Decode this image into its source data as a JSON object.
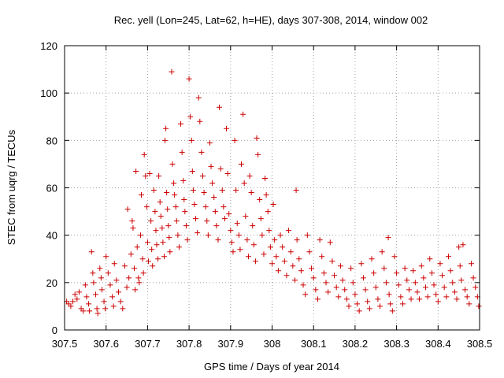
{
  "chart_data": {
    "type": "scatter",
    "title": "Rec. yell (Lon=245, Lat=62, h=HE), days 307-308, 2014, window 002",
    "xlabel": "GPS time / Days of year 2014",
    "ylabel": "STEC from uqrg / TECUs",
    "xlim": [
      307.5,
      308.5
    ],
    "ylim": [
      0,
      120
    ],
    "x_ticks": [
      "307.5",
      "307.6",
      "307.7",
      "307.8",
      "307.9",
      "308",
      "308.1",
      "308.2",
      "308.3",
      "308.4",
      "308.5"
    ],
    "y_ticks": [
      "0",
      "20",
      "40",
      "60",
      "80",
      "100",
      "120"
    ],
    "grid": true,
    "marker": "+",
    "marker_color": "#cc0000",
    "series": [
      {
        "name": "STEC",
        "points": [
          [
            307.505,
            12
          ],
          [
            307.51,
            11
          ],
          [
            307.515,
            10
          ],
          [
            307.52,
            12
          ],
          [
            307.525,
            15
          ],
          [
            307.53,
            13
          ],
          [
            307.535,
            16
          ],
          [
            307.54,
            9
          ],
          [
            307.545,
            8
          ],
          [
            307.55,
            19
          ],
          [
            307.553,
            14
          ],
          [
            307.558,
            11
          ],
          [
            307.56,
            8
          ],
          [
            307.565,
            33
          ],
          [
            307.568,
            24
          ],
          [
            307.57,
            20
          ],
          [
            307.575,
            15
          ],
          [
            307.578,
            9
          ],
          [
            307.58,
            7
          ],
          [
            307.585,
            26
          ],
          [
            307.588,
            22
          ],
          [
            307.59,
            17
          ],
          [
            307.595,
            12
          ],
          [
            307.598,
            9
          ],
          [
            307.6,
            31
          ],
          [
            307.605,
            24
          ],
          [
            307.61,
            19
          ],
          [
            307.615,
            14
          ],
          [
            307.618,
            10
          ],
          [
            307.62,
            28
          ],
          [
            307.625,
            21
          ],
          [
            307.63,
            16
          ],
          [
            307.635,
            12
          ],
          [
            307.64,
            9
          ],
          [
            307.645,
            27
          ],
          [
            307.65,
            18
          ],
          [
            307.652,
            51
          ],
          [
            307.655,
            22
          ],
          [
            307.66,
            32
          ],
          [
            307.663,
            46
          ],
          [
            307.665,
            43
          ],
          [
            307.668,
            26
          ],
          [
            307.67,
            17
          ],
          [
            307.672,
            67
          ],
          [
            307.675,
            35
          ],
          [
            307.678,
            22
          ],
          [
            307.68,
            20
          ],
          [
            307.683,
            40
          ],
          [
            307.685,
            57
          ],
          [
            307.688,
            30
          ],
          [
            307.69,
            24
          ],
          [
            307.692,
            74
          ],
          [
            307.695,
            65
          ],
          [
            307.698,
            52
          ],
          [
            307.7,
            37
          ],
          [
            307.702,
            29
          ],
          [
            307.705,
            66
          ],
          [
            307.708,
            46
          ],
          [
            307.71,
            34
          ],
          [
            307.712,
            27
          ],
          [
            307.715,
            59
          ],
          [
            307.718,
            50
          ],
          [
            307.72,
            42
          ],
          [
            307.722,
            36
          ],
          [
            307.725,
            30
          ],
          [
            307.727,
            65
          ],
          [
            307.73,
            54
          ],
          [
            307.732,
            48
          ],
          [
            307.735,
            43
          ],
          [
            307.737,
            37
          ],
          [
            307.74,
            31
          ],
          [
            307.742,
            80
          ],
          [
            307.744,
            85
          ],
          [
            307.746,
            58
          ],
          [
            307.748,
            51
          ],
          [
            307.75,
            44
          ],
          [
            307.752,
            39
          ],
          [
            307.754,
            33
          ],
          [
            307.758,
            109
          ],
          [
            307.76,
            70
          ],
          [
            307.763,
            62
          ],
          [
            307.765,
            57
          ],
          [
            307.768,
            52
          ],
          [
            307.77,
            46
          ],
          [
            307.773,
            40
          ],
          [
            307.776,
            35
          ],
          [
            307.78,
            87
          ],
          [
            307.783,
            75
          ],
          [
            307.786,
            63
          ],
          [
            307.788,
            55
          ],
          [
            307.79,
            50
          ],
          [
            307.793,
            44
          ],
          [
            307.796,
            38
          ],
          [
            307.8,
            106
          ],
          [
            307.803,
            90
          ],
          [
            307.806,
            80
          ],
          [
            307.808,
            67
          ],
          [
            307.81,
            59
          ],
          [
            307.813,
            53
          ],
          [
            307.816,
            47
          ],
          [
            307.82,
            41
          ],
          [
            307.823,
            98
          ],
          [
            307.826,
            88
          ],
          [
            307.83,
            75
          ],
          [
            307.833,
            65
          ],
          [
            307.836,
            58
          ],
          [
            307.84,
            52
          ],
          [
            307.843,
            46
          ],
          [
            307.846,
            40
          ],
          [
            307.85,
            79
          ],
          [
            307.853,
            69
          ],
          [
            307.856,
            62
          ],
          [
            307.86,
            56
          ],
          [
            307.863,
            50
          ],
          [
            307.866,
            44
          ],
          [
            307.87,
            38
          ],
          [
            307.873,
            94
          ],
          [
            307.876,
            68
          ],
          [
            307.88,
            59
          ],
          [
            307.883,
            52
          ],
          [
            307.886,
            47
          ],
          [
            307.89,
            85
          ],
          [
            307.893,
            66
          ],
          [
            307.896,
            49
          ],
          [
            307.9,
            42
          ],
          [
            307.903,
            37
          ],
          [
            307.906,
            33
          ],
          [
            307.91,
            80
          ],
          [
            307.913,
            59
          ],
          [
            307.916,
            45
          ],
          [
            307.92,
            40
          ],
          [
            307.923,
            34
          ],
          [
            307.926,
            70
          ],
          [
            307.93,
            91
          ],
          [
            307.933,
            62
          ],
          [
            307.936,
            48
          ],
          [
            307.94,
            38
          ],
          [
            307.943,
            31
          ],
          [
            307.946,
            65
          ],
          [
            307.95,
            58
          ],
          [
            307.953,
            44
          ],
          [
            307.956,
            36
          ],
          [
            307.96,
            29
          ],
          [
            307.963,
            81
          ],
          [
            307.966,
            74
          ],
          [
            307.97,
            55
          ],
          [
            307.973,
            47
          ],
          [
            307.976,
            40
          ],
          [
            307.98,
            32
          ],
          [
            307.983,
            64
          ],
          [
            307.986,
            57
          ],
          [
            307.99,
            50
          ],
          [
            307.993,
            42
          ],
          [
            307.996,
            35
          ],
          [
            308.0,
            28
          ],
          [
            308.003,
            53
          ],
          [
            308.006,
            38
          ],
          [
            308.01,
            31
          ],
          [
            308.015,
            25
          ],
          [
            308.02,
            40
          ],
          [
            308.025,
            35
          ],
          [
            308.03,
            29
          ],
          [
            308.035,
            23
          ],
          [
            308.04,
            42
          ],
          [
            308.045,
            33
          ],
          [
            308.05,
            27
          ],
          [
            308.055,
            21
          ],
          [
            308.058,
            59
          ],
          [
            308.06,
            38
          ],
          [
            308.065,
            30
          ],
          [
            308.07,
            25
          ],
          [
            308.075,
            19
          ],
          [
            308.08,
            15
          ],
          [
            308.085,
            40
          ],
          [
            308.09,
            33
          ],
          [
            308.095,
            26
          ],
          [
            308.1,
            22
          ],
          [
            308.105,
            17
          ],
          [
            308.11,
            13
          ],
          [
            308.115,
            38
          ],
          [
            308.12,
            31
          ],
          [
            308.125,
            24
          ],
          [
            308.13,
            20
          ],
          [
            308.135,
            16
          ],
          [
            308.14,
            37
          ],
          [
            308.145,
            29
          ],
          [
            308.15,
            23
          ],
          [
            308.155,
            18
          ],
          [
            308.16,
            14
          ],
          [
            308.165,
            27
          ],
          [
            308.17,
            21
          ],
          [
            308.175,
            17
          ],
          [
            308.18,
            13
          ],
          [
            308.185,
            10
          ],
          [
            308.19,
            26
          ],
          [
            308.195,
            20
          ],
          [
            308.2,
            15
          ],
          [
            308.205,
            11
          ],
          [
            308.21,
            8
          ],
          [
            308.215,
            28
          ],
          [
            308.22,
            22
          ],
          [
            308.225,
            17
          ],
          [
            308.23,
            12
          ],
          [
            308.235,
            9
          ],
          [
            308.24,
            30
          ],
          [
            308.245,
            24
          ],
          [
            308.25,
            18
          ],
          [
            308.255,
            13
          ],
          [
            308.26,
            10
          ],
          [
            308.265,
            33
          ],
          [
            308.27,
            26
          ],
          [
            308.275,
            20
          ],
          [
            308.28,
            39
          ],
          [
            308.282,
            15
          ],
          [
            308.285,
            11
          ],
          [
            308.29,
            8
          ],
          [
            308.295,
            31
          ],
          [
            308.3,
            24
          ],
          [
            308.305,
            19
          ],
          [
            308.31,
            14
          ],
          [
            308.315,
            11
          ],
          [
            308.32,
            26
          ],
          [
            308.325,
            21
          ],
          [
            308.33,
            17
          ],
          [
            308.335,
            13
          ],
          [
            308.34,
            25
          ],
          [
            308.345,
            20
          ],
          [
            308.35,
            16
          ],
          [
            308.355,
            13
          ],
          [
            308.36,
            27
          ],
          [
            308.365,
            22
          ],
          [
            308.37,
            18
          ],
          [
            308.375,
            14
          ],
          [
            308.38,
            30
          ],
          [
            308.385,
            24
          ],
          [
            308.39,
            19
          ],
          [
            308.395,
            15
          ],
          [
            308.4,
            12
          ],
          [
            308.405,
            28
          ],
          [
            308.41,
            23
          ],
          [
            308.415,
            18
          ],
          [
            308.42,
            14
          ],
          [
            308.425,
            31
          ],
          [
            308.43,
            25
          ],
          [
            308.435,
            20
          ],
          [
            308.44,
            16
          ],
          [
            308.445,
            13
          ],
          [
            308.45,
            35
          ],
          [
            308.453,
            27
          ],
          [
            308.456,
            21
          ],
          [
            308.46,
            36
          ],
          [
            308.465,
            17
          ],
          [
            308.47,
            14
          ],
          [
            308.475,
            11
          ],
          [
            308.48,
            28
          ],
          [
            308.485,
            22
          ],
          [
            308.49,
            18
          ],
          [
            308.495,
            14
          ],
          [
            308.498,
            10
          ]
        ]
      }
    ]
  }
}
